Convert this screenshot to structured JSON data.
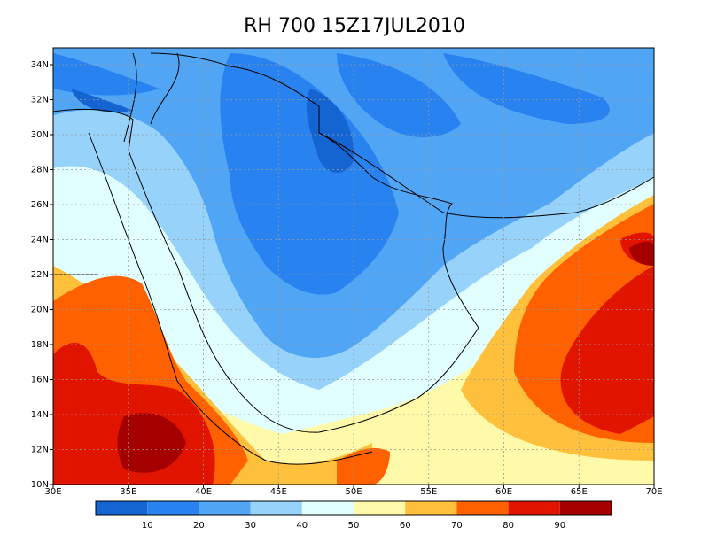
{
  "title": "RH 700 15Z17JUL2010",
  "lon_ticks": [
    "30E",
    "35E",
    "40E",
    "45E",
    "50E",
    "55E",
    "60E",
    "65E",
    "70E"
  ],
  "lat_ticks": [
    "10N",
    "12N",
    "14N",
    "16N",
    "18N",
    "20N",
    "22N",
    "24N",
    "26N",
    "28N",
    "30N",
    "32N",
    "34N"
  ],
  "colorbar": {
    "colors": [
      "#1464d2",
      "#2882f0",
      "#50a5f5",
      "#96d2fa",
      "#e1ffff",
      "#fffaaa",
      "#ffc03c",
      "#ff6000",
      "#e11400",
      "#a50000"
    ],
    "labels": [
      10,
      20,
      30,
      40,
      50,
      60,
      70,
      80,
      90
    ]
  }
}
